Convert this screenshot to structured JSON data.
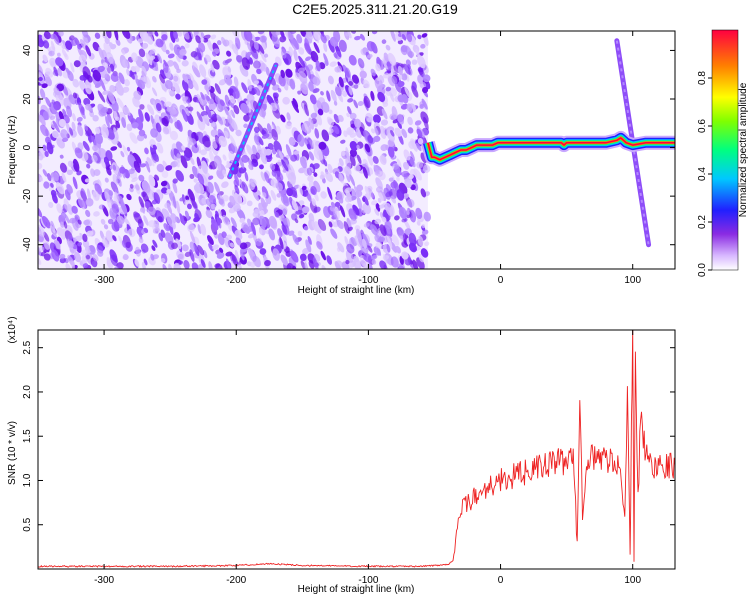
{
  "title": "C2E5.2025.311.21.20.G19",
  "chart_data": [
    {
      "type": "heatmap",
      "xlabel": "Height of straight line (km)",
      "ylabel": "Frequency (Hz)",
      "xlim": [
        -350,
        132
      ],
      "ylim": [
        -50,
        48
      ],
      "xticks": [
        -300,
        -200,
        -100,
        0,
        100
      ],
      "yticks": [
        -40,
        -20,
        0,
        20,
        40
      ],
      "noise_region_x": [
        -350,
        -55
      ],
      "main_trace": {
        "x": [
          -55,
          -52,
          -50,
          -46,
          -42,
          -38,
          -34,
          -30,
          -26,
          -22,
          -18,
          -14,
          -10,
          -6,
          -2,
          2,
          10,
          20,
          30,
          40,
          46,
          48,
          50,
          60,
          70,
          80,
          88,
          91,
          93,
          95,
          100,
          110,
          120,
          132
        ],
        "y": [
          2,
          -4,
          -4,
          -5,
          -4,
          -3,
          -2,
          -1,
          -1,
          0,
          1,
          1,
          1,
          1,
          2,
          2,
          2,
          2,
          2,
          2,
          2,
          1,
          2,
          2,
          2,
          2,
          3,
          4,
          3,
          2,
          1,
          2,
          2,
          2
        ]
      },
      "diagonal_streaks": [
        {
          "x": [
            -205,
            -170
          ],
          "y": [
            -12,
            34
          ]
        },
        {
          "x": [
            88,
            112
          ],
          "y": [
            44,
            -40
          ]
        }
      ],
      "colorbar": {
        "label": "Normalized spectral amplitude",
        "range": [
          0,
          1
        ],
        "ticks": [
          0.0,
          0.2,
          0.4,
          0.6,
          0.8
        ],
        "tick_labels": [
          "0.0",
          "0.2",
          "0.4",
          "0.6",
          "0.8"
        ]
      }
    },
    {
      "type": "line",
      "xlabel": "Height of straight line (km)",
      "ylabel": "SNR (10 * v/v)",
      "y_multiplier": "(x10⁴)",
      "xlim": [
        -350,
        132
      ],
      "ylim": [
        0,
        2.7
      ],
      "xticks": [
        -300,
        -200,
        -100,
        0,
        100
      ],
      "yticks": [
        0.5,
        1.0,
        1.5,
        2.0,
        2.5
      ],
      "ytick_labels": [
        "0.5",
        "1.0",
        "1.5",
        "2.0",
        "2.5"
      ],
      "series": [
        {
          "color": "#ee2222",
          "x": [
            -350,
            -300,
            -250,
            -200,
            -175,
            -150,
            -100,
            -60,
            -40,
            -36,
            -34,
            -32,
            -30,
            -25,
            -20,
            -15,
            -10,
            -5,
            0,
            10,
            20,
            30,
            40,
            50,
            55,
            58,
            60,
            62,
            65,
            70,
            80,
            90,
            94,
            96,
            98,
            99,
            100,
            101,
            102,
            104,
            106,
            110,
            115,
            120,
            125,
            132
          ],
          "y": [
            0.03,
            0.03,
            0.03,
            0.04,
            0.06,
            0.04,
            0.03,
            0.03,
            0.05,
            0.1,
            0.3,
            0.6,
            0.65,
            0.75,
            0.8,
            0.85,
            0.95,
            0.95,
            1.0,
            1.05,
            1.1,
            1.15,
            1.2,
            1.22,
            1.25,
            0.3,
            2.0,
            0.6,
            1.28,
            1.25,
            1.25,
            1.2,
            0.5,
            2.0,
            0.1,
            1.5,
            2.7,
            0.1,
            2.4,
            0.8,
            1.7,
            1.3,
            1.15,
            1.2,
            1.18,
            1.17
          ]
        }
      ]
    }
  ]
}
